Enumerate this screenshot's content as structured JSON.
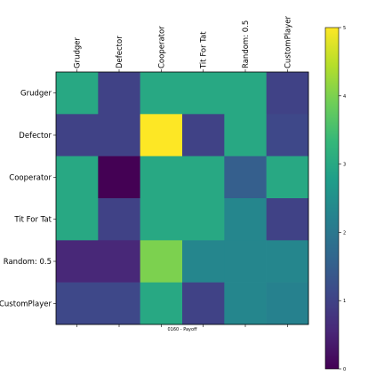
{
  "chart_data": {
    "type": "heatmap",
    "title": "",
    "xlabel": "0160 - Payoff",
    "ylabel": "",
    "players": [
      "Grudger",
      "Defector",
      "Cooperator",
      "Tit For Tat",
      "Random: 0.5",
      "CustomPlayer"
    ],
    "values": [
      [
        3.0,
        1.0,
        3.0,
        3.0,
        3.0,
        1.0
      ],
      [
        1.0,
        1.0,
        5.0,
        1.0,
        3.0,
        1.1
      ],
      [
        3.0,
        0.0,
        3.0,
        3.0,
        1.5,
        3.0
      ],
      [
        3.0,
        1.0,
        3.0,
        3.0,
        2.3,
        1.0
      ],
      [
        0.55,
        0.55,
        4.0,
        2.3,
        2.3,
        2.3
      ],
      [
        1.1,
        1.1,
        3.0,
        1.0,
        2.3,
        2.2
      ]
    ],
    "colorbar": {
      "min": 0,
      "max": 5,
      "ticks": [
        "0",
        "1",
        "2",
        "3",
        "4",
        "5"
      ]
    },
    "colormap": [
      "#440154",
      "#482878",
      "#3e4989",
      "#31688e",
      "#26828e",
      "#1f9e89",
      "#35b779",
      "#6ece58",
      "#b5de2b",
      "#fde725"
    ]
  }
}
